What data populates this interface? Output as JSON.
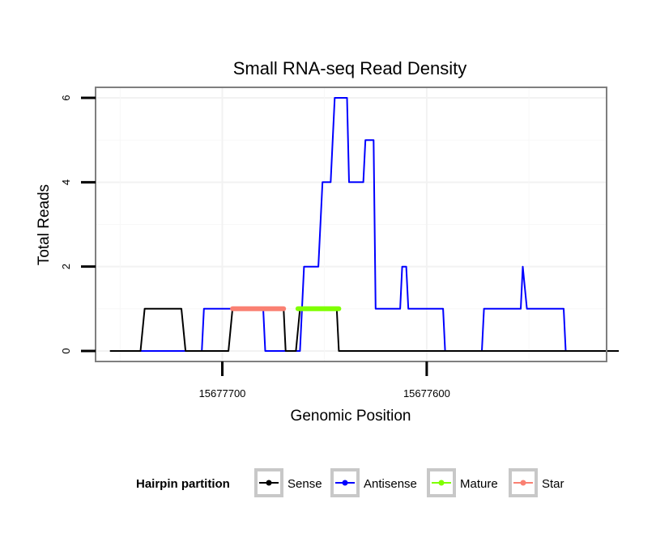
{
  "chart_data": {
    "type": "line",
    "title": "Small RNA-seq Read Density",
    "xlabel": "Genomic Position",
    "ylabel": "Total Reads",
    "x_reversed": true,
    "xlim": [
      15677762,
      15677512
    ],
    "ylim": [
      -0.25,
      6.25
    ],
    "x_ticks": [
      15677700,
      15677600
    ],
    "x_tick_labels": [
      "15677700",
      "15677600"
    ],
    "y_ticks": [
      0,
      2,
      4,
      6
    ],
    "y_tick_labels": [
      "0",
      "2",
      "4",
      "6"
    ],
    "grid": true,
    "legend_position": "bottom",
    "legend_title": "Hairpin partition",
    "colors": {
      "Sense": "#000000",
      "Antisense": "#0000ff",
      "Mature": "#7fff00",
      "Star": "#fa8072"
    },
    "series": [
      {
        "name": "Sense",
        "points": [
          [
            15677755,
            0
          ],
          [
            15677740,
            0
          ],
          [
            15677738,
            1
          ],
          [
            15677720,
            1
          ],
          [
            15677718,
            0
          ],
          [
            15677697,
            0
          ],
          [
            15677695,
            1
          ],
          [
            15677670,
            1
          ],
          [
            15677669,
            0
          ],
          [
            15677664,
            0
          ],
          [
            15677662,
            1
          ],
          [
            15677644,
            1
          ],
          [
            15677643,
            0
          ],
          [
            15677506,
            0
          ]
        ]
      },
      {
        "name": "Antisense",
        "points": [
          [
            15677740,
            0
          ],
          [
            15677710,
            0
          ],
          [
            15677709,
            1
          ],
          [
            15677680,
            1
          ],
          [
            15677679,
            0
          ],
          [
            15677662,
            0
          ],
          [
            15677660,
            2
          ],
          [
            15677653,
            2
          ],
          [
            15677651,
            4
          ],
          [
            15677647,
            4
          ],
          [
            15677645,
            6
          ],
          [
            15677639,
            6
          ],
          [
            15677638,
            4
          ],
          [
            15677631,
            4
          ],
          [
            15677630,
            5
          ],
          [
            15677626,
            5
          ],
          [
            15677625,
            1
          ],
          [
            15677613,
            1
          ],
          [
            15677612,
            2
          ],
          [
            15677610,
            2
          ],
          [
            15677609,
            1
          ],
          [
            15677592,
            1
          ],
          [
            15677591,
            0
          ],
          [
            15677573,
            0
          ],
          [
            15677572,
            1
          ],
          [
            15677554,
            1
          ],
          [
            15677553,
            2
          ],
          [
            15677551,
            1
          ],
          [
            15677533,
            1
          ],
          [
            15677532,
            0
          ]
        ]
      },
      {
        "name": "Mature",
        "segment": [
          15677663,
          15677643
        ],
        "value": 1
      },
      {
        "name": "Star",
        "segment": [
          15677695,
          15677670
        ],
        "value": 1
      }
    ]
  }
}
